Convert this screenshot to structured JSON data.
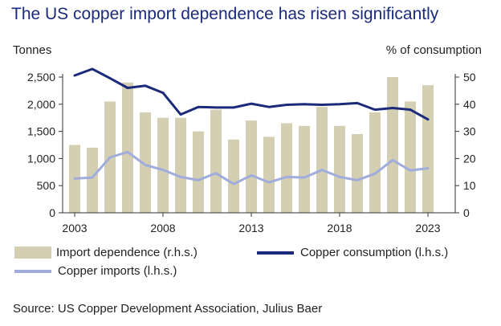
{
  "chart_data": {
    "type": "bar+line",
    "title": "The US copper import dependence has risen significantly",
    "left_axis_label": "Tonnes",
    "right_axis_label": "% of consumption",
    "years": [
      2003,
      2004,
      2005,
      2006,
      2007,
      2008,
      2009,
      2010,
      2011,
      2012,
      2013,
      2014,
      2015,
      2016,
      2017,
      2018,
      2019,
      2020,
      2021,
      2022,
      2023
    ],
    "x_ticks": [
      {
        "year": 2003,
        "label": "2003"
      },
      {
        "year": 2008,
        "label": "2008"
      },
      {
        "year": 2013,
        "label": "2013"
      },
      {
        "year": 2018,
        "label": "2018"
      },
      {
        "year": 2023,
        "label": "2023"
      }
    ],
    "left_axis": {
      "min": 0,
      "max": 2500,
      "ticks": [
        {
          "value": 0,
          "label": "0"
        },
        {
          "value": 500,
          "label": "500"
        },
        {
          "value": 1000,
          "label": "1,000"
        },
        {
          "value": 1500,
          "label": "1,500"
        },
        {
          "value": 2000,
          "label": "2,000"
        },
        {
          "value": 2500,
          "label": "2,500"
        }
      ]
    },
    "right_axis": {
      "min": 0,
      "max": 50,
      "ticks": [
        {
          "value": 0,
          "label": "0"
        },
        {
          "value": 10,
          "label": "10"
        },
        {
          "value": 20,
          "label": "20"
        },
        {
          "value": 30,
          "label": "30"
        },
        {
          "value": 40,
          "label": "40"
        },
        {
          "value": 50,
          "label": "50"
        }
      ]
    },
    "series": [
      {
        "name": "Import dependence (r.h.s.)",
        "kind": "bar",
        "axis": "right",
        "color": "#d4ceb2",
        "values": [
          25,
          24,
          41,
          48,
          37,
          35,
          35,
          30,
          38,
          27,
          34,
          28,
          33,
          32,
          39,
          32,
          29,
          37,
          50,
          41,
          47
        ]
      },
      {
        "name": "Copper consumption (l.h.s.)",
        "kind": "line",
        "axis": "left",
        "color": "#1b2a7a",
        "values": [
          2530,
          2650,
          2480,
          2300,
          2340,
          2210,
          1810,
          1950,
          1940,
          1940,
          2010,
          1950,
          1990,
          2000,
          1990,
          2000,
          2020,
          1900,
          1930,
          1900,
          1720
        ]
      },
      {
        "name": "Copper imports (l.h.s.)",
        "kind": "line",
        "axis": "left",
        "color": "#a0acdb",
        "values": [
          630,
          650,
          1020,
          1120,
          880,
          790,
          660,
          600,
          730,
          530,
          690,
          560,
          660,
          650,
          790,
          660,
          600,
          720,
          970,
          780,
          820
        ]
      }
    ]
  },
  "legend": {
    "bar_label": "Import dependence (r.h.s.)",
    "consumption_label": "Copper consumption (l.h.s.)",
    "imports_label": "Copper imports (l.h.s.)"
  },
  "source": "Source: US Copper Development Association, Julius Baer"
}
